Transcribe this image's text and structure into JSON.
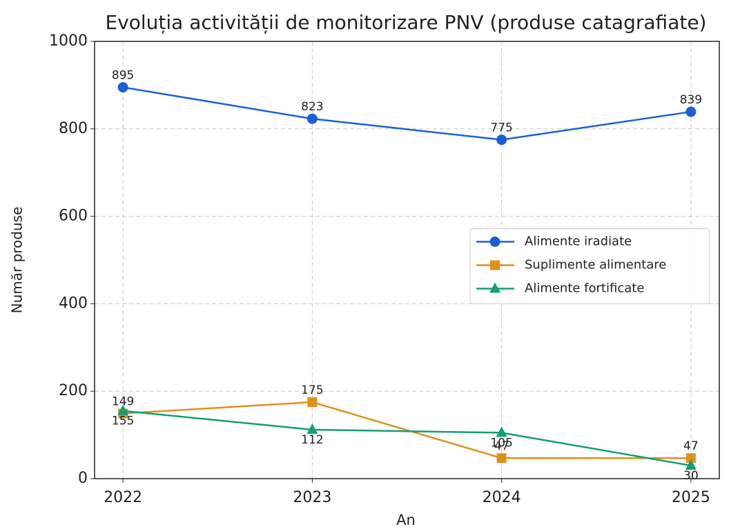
{
  "chart_data": {
    "type": "line",
    "title": "Evoluția activității de monitorizare PNV (produse catagrafiate)",
    "x_label": "An",
    "y_label": "Număr produse",
    "x": [
      2022,
      2023,
      2024,
      2025
    ],
    "xlim": [
      2021.85,
      2025.15
    ],
    "xticks": [
      2022,
      2023,
      2024,
      2025
    ],
    "ylim": [
      0,
      1000
    ],
    "yticks": [
      0,
      200,
      400,
      600,
      800,
      1000
    ],
    "grid": true,
    "legend": "center right",
    "series": [
      {
        "name": "Alimente iradiate",
        "color": "#1a5fd8",
        "marker": "circle",
        "values": [
          895,
          823,
          775,
          839
        ]
      },
      {
        "name": "Suplimente alimentare",
        "color": "#e0901a",
        "marker": "square",
        "values": [
          149,
          175,
          47,
          47
        ]
      },
      {
        "name": "Alimente fortificate",
        "color": "#139e74",
        "marker": "triangle",
        "values": [
          155,
          112,
          105,
          30
        ]
      }
    ]
  }
}
